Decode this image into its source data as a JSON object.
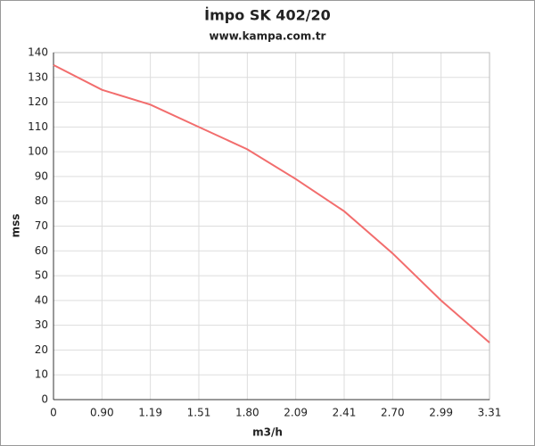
{
  "chart_data": {
    "type": "line",
    "title": "İmpo SK 402/20",
    "subtitle": "www.kampa.com.tr",
    "x_label": "m3/h",
    "y_label": "mss",
    "categories": [
      "0",
      "0.90",
      "1.19",
      "1.51",
      "1.80",
      "2.09",
      "2.41",
      "2.70",
      "2.99",
      "3.31"
    ],
    "series": [
      {
        "color": "#f26d6d",
        "values": [
          135,
          125,
          119,
          110,
          101,
          89,
          76,
          59,
          40,
          23
        ]
      }
    ],
    "ylim": [
      0,
      140
    ],
    "yticks": [
      0,
      10,
      20,
      30,
      40,
      50,
      60,
      70,
      80,
      90,
      100,
      110,
      120,
      130,
      140
    ],
    "grid": true
  }
}
